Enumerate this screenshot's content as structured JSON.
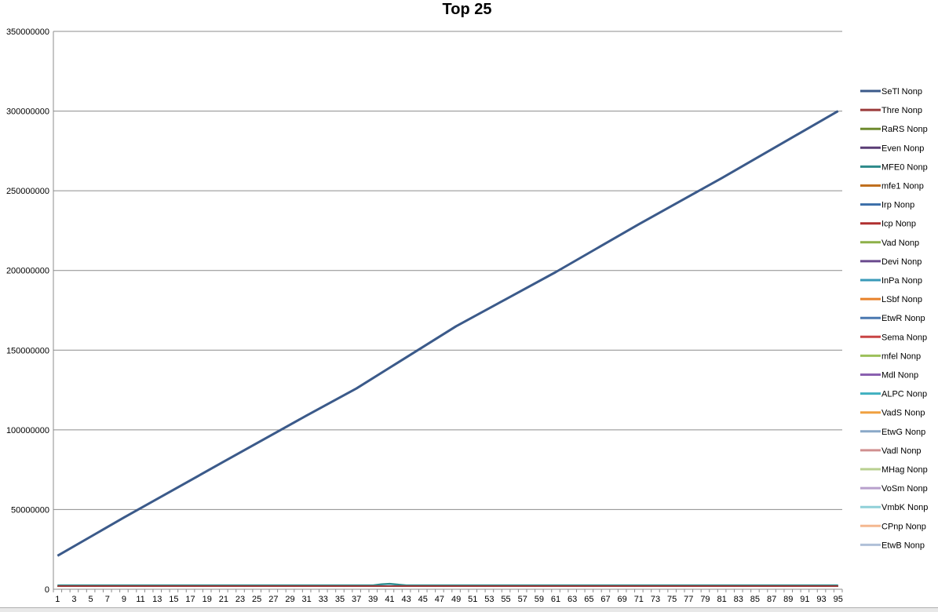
{
  "chart_data": {
    "type": "line",
    "title": "Top 25",
    "xlabel": "",
    "ylabel": "",
    "x_range": [
      1,
      95
    ],
    "x_tick_step": 2,
    "ylim": [
      0,
      350000000
    ],
    "y_ticks": [
      0,
      50000000,
      100000000,
      150000000,
      200000000,
      250000000,
      300000000,
      350000000
    ],
    "y_tick_labels": [
      "0",
      "50000000",
      "100000000",
      "150000000",
      "200000000",
      "250000000",
      "300000000",
      "350000000"
    ],
    "grid": "horizontal",
    "legend_position": "right",
    "series": [
      {
        "name": "SeTl Nonp",
        "color": "#3b5a8a",
        "line_width": 3,
        "start": 21000000,
        "end": 300000000,
        "bump": [],
        "points": [
          [
            1,
            21000000
          ],
          [
            9,
            45000000
          ],
          [
            21,
            80000000
          ],
          [
            31,
            109000000
          ],
          [
            37,
            126000000
          ],
          [
            41,
            139000000
          ],
          [
            49,
            165000000
          ],
          [
            55,
            182000000
          ],
          [
            61,
            199000000
          ],
          [
            71,
            229000000
          ],
          [
            81,
            258000000
          ],
          [
            95,
            300000000
          ]
        ]
      },
      {
        "name": "Thre Nonp",
        "color": "#9b3a3a",
        "line_width": 2,
        "start": 2000000,
        "end": 2000000,
        "bump": []
      },
      {
        "name": "RaRS Nonp",
        "color": "#6e8a2e",
        "line_width": 2,
        "start": 2000000,
        "end": 2000000,
        "bump": []
      },
      {
        "name": "Even Nonp",
        "color": "#5a3d75",
        "line_width": 2,
        "start": 2000000,
        "end": 2000000,
        "bump": []
      },
      {
        "name": "MFE0 Nonp",
        "color": "#2d8a8a",
        "line_width": 2,
        "start": 2500000,
        "end": 2500000,
        "bump": [
          [
            40,
            3200000
          ],
          [
            41,
            3500000
          ],
          [
            42,
            3000000
          ]
        ]
      },
      {
        "name": "mfe1 Nonp",
        "color": "#c0701f",
        "line_width": 2,
        "start": 2000000,
        "end": 2000000,
        "bump": []
      },
      {
        "name": "Irp  Nonp",
        "color": "#3a6ea8",
        "line_width": 2,
        "start": 2000000,
        "end": 2000000,
        "bump": []
      },
      {
        "name": "Icp  Nonp",
        "color": "#b03030",
        "line_width": 2,
        "start": 2000000,
        "end": 2000000,
        "bump": []
      },
      {
        "name": "Vad  Nonp",
        "color": "#8db048",
        "line_width": 2,
        "start": 2000000,
        "end": 2000000,
        "bump": []
      },
      {
        "name": "Devi Nonp",
        "color": "#6a4a8e",
        "line_width": 2,
        "start": 2000000,
        "end": 2000000,
        "bump": []
      },
      {
        "name": "InPa Nonp",
        "color": "#3a9ab8",
        "line_width": 2,
        "start": 2200000,
        "end": 2200000,
        "bump": []
      },
      {
        "name": "LSbf Nonp",
        "color": "#e8822a",
        "line_width": 2,
        "start": 2000000,
        "end": 2000000,
        "bump": []
      },
      {
        "name": "EtwR Nonp",
        "color": "#4a78b0",
        "line_width": 2,
        "start": 2000000,
        "end": 2000000,
        "bump": []
      },
      {
        "name": "Sema Nonp",
        "color": "#c84444",
        "line_width": 2,
        "start": 2000000,
        "end": 2000000,
        "bump": []
      },
      {
        "name": "mfel Nonp",
        "color": "#9cc05a",
        "line_width": 2,
        "start": 2000000,
        "end": 2000000,
        "bump": []
      },
      {
        "name": "Mdl  Nonp",
        "color": "#8a60b0",
        "line_width": 2,
        "start": 2000000,
        "end": 2000000,
        "bump": []
      },
      {
        "name": "ALPC Nonp",
        "color": "#40b0c0",
        "line_width": 2,
        "start": 2000000,
        "end": 2000000,
        "bump": []
      },
      {
        "name": "VadS Nonp",
        "color": "#f0a040",
        "line_width": 2,
        "start": 2000000,
        "end": 2000000,
        "bump": []
      },
      {
        "name": "EtwG Nonp",
        "color": "#8aa8c8",
        "line_width": 2,
        "start": 2000000,
        "end": 2000000,
        "bump": []
      },
      {
        "name": "Vadl Nonp",
        "color": "#d09090",
        "line_width": 2,
        "start": 2000000,
        "end": 2000000,
        "bump": []
      },
      {
        "name": "MHag Nonp",
        "color": "#b8d090",
        "line_width": 2,
        "start": 2000000,
        "end": 2000000,
        "bump": []
      },
      {
        "name": "VoSm Nonp",
        "color": "#b8a0cc",
        "line_width": 2,
        "start": 2000000,
        "end": 2000000,
        "bump": []
      },
      {
        "name": "VmbK Nonp",
        "color": "#90d0d8",
        "line_width": 2,
        "start": 2000000,
        "end": 2000000,
        "bump": []
      },
      {
        "name": "CPnp Nonp",
        "color": "#f4b890",
        "line_width": 2,
        "start": 2000000,
        "end": 2000000,
        "bump": []
      },
      {
        "name": "EtwB Nonp",
        "color": "#b0c0d8",
        "line_width": 2,
        "start": 2000000,
        "end": 2000000,
        "bump": []
      }
    ]
  }
}
